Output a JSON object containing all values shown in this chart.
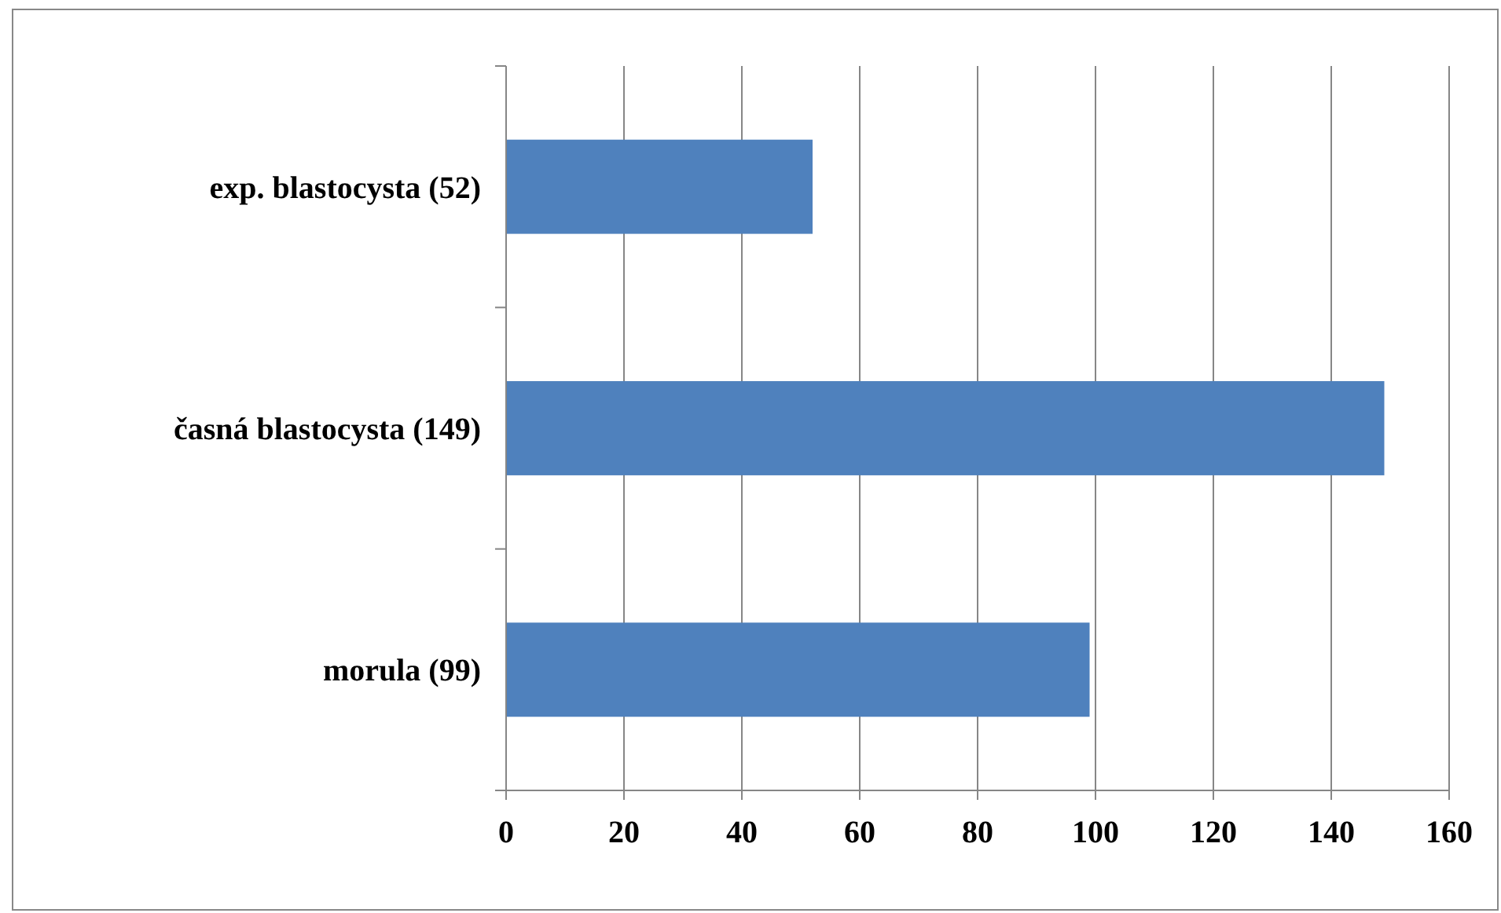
{
  "chart_data": {
    "type": "bar",
    "orientation": "horizontal",
    "categories": [
      "exp. blastocysta (52)",
      "časná blastocysta (149)",
      "morula (99)"
    ],
    "values": [
      52,
      149,
      99
    ],
    "color": "#4f81bd",
    "xlim": [
      0,
      160
    ],
    "xticks": [
      0,
      20,
      40,
      60,
      80,
      100,
      120,
      140,
      160
    ],
    "grid": "x"
  }
}
